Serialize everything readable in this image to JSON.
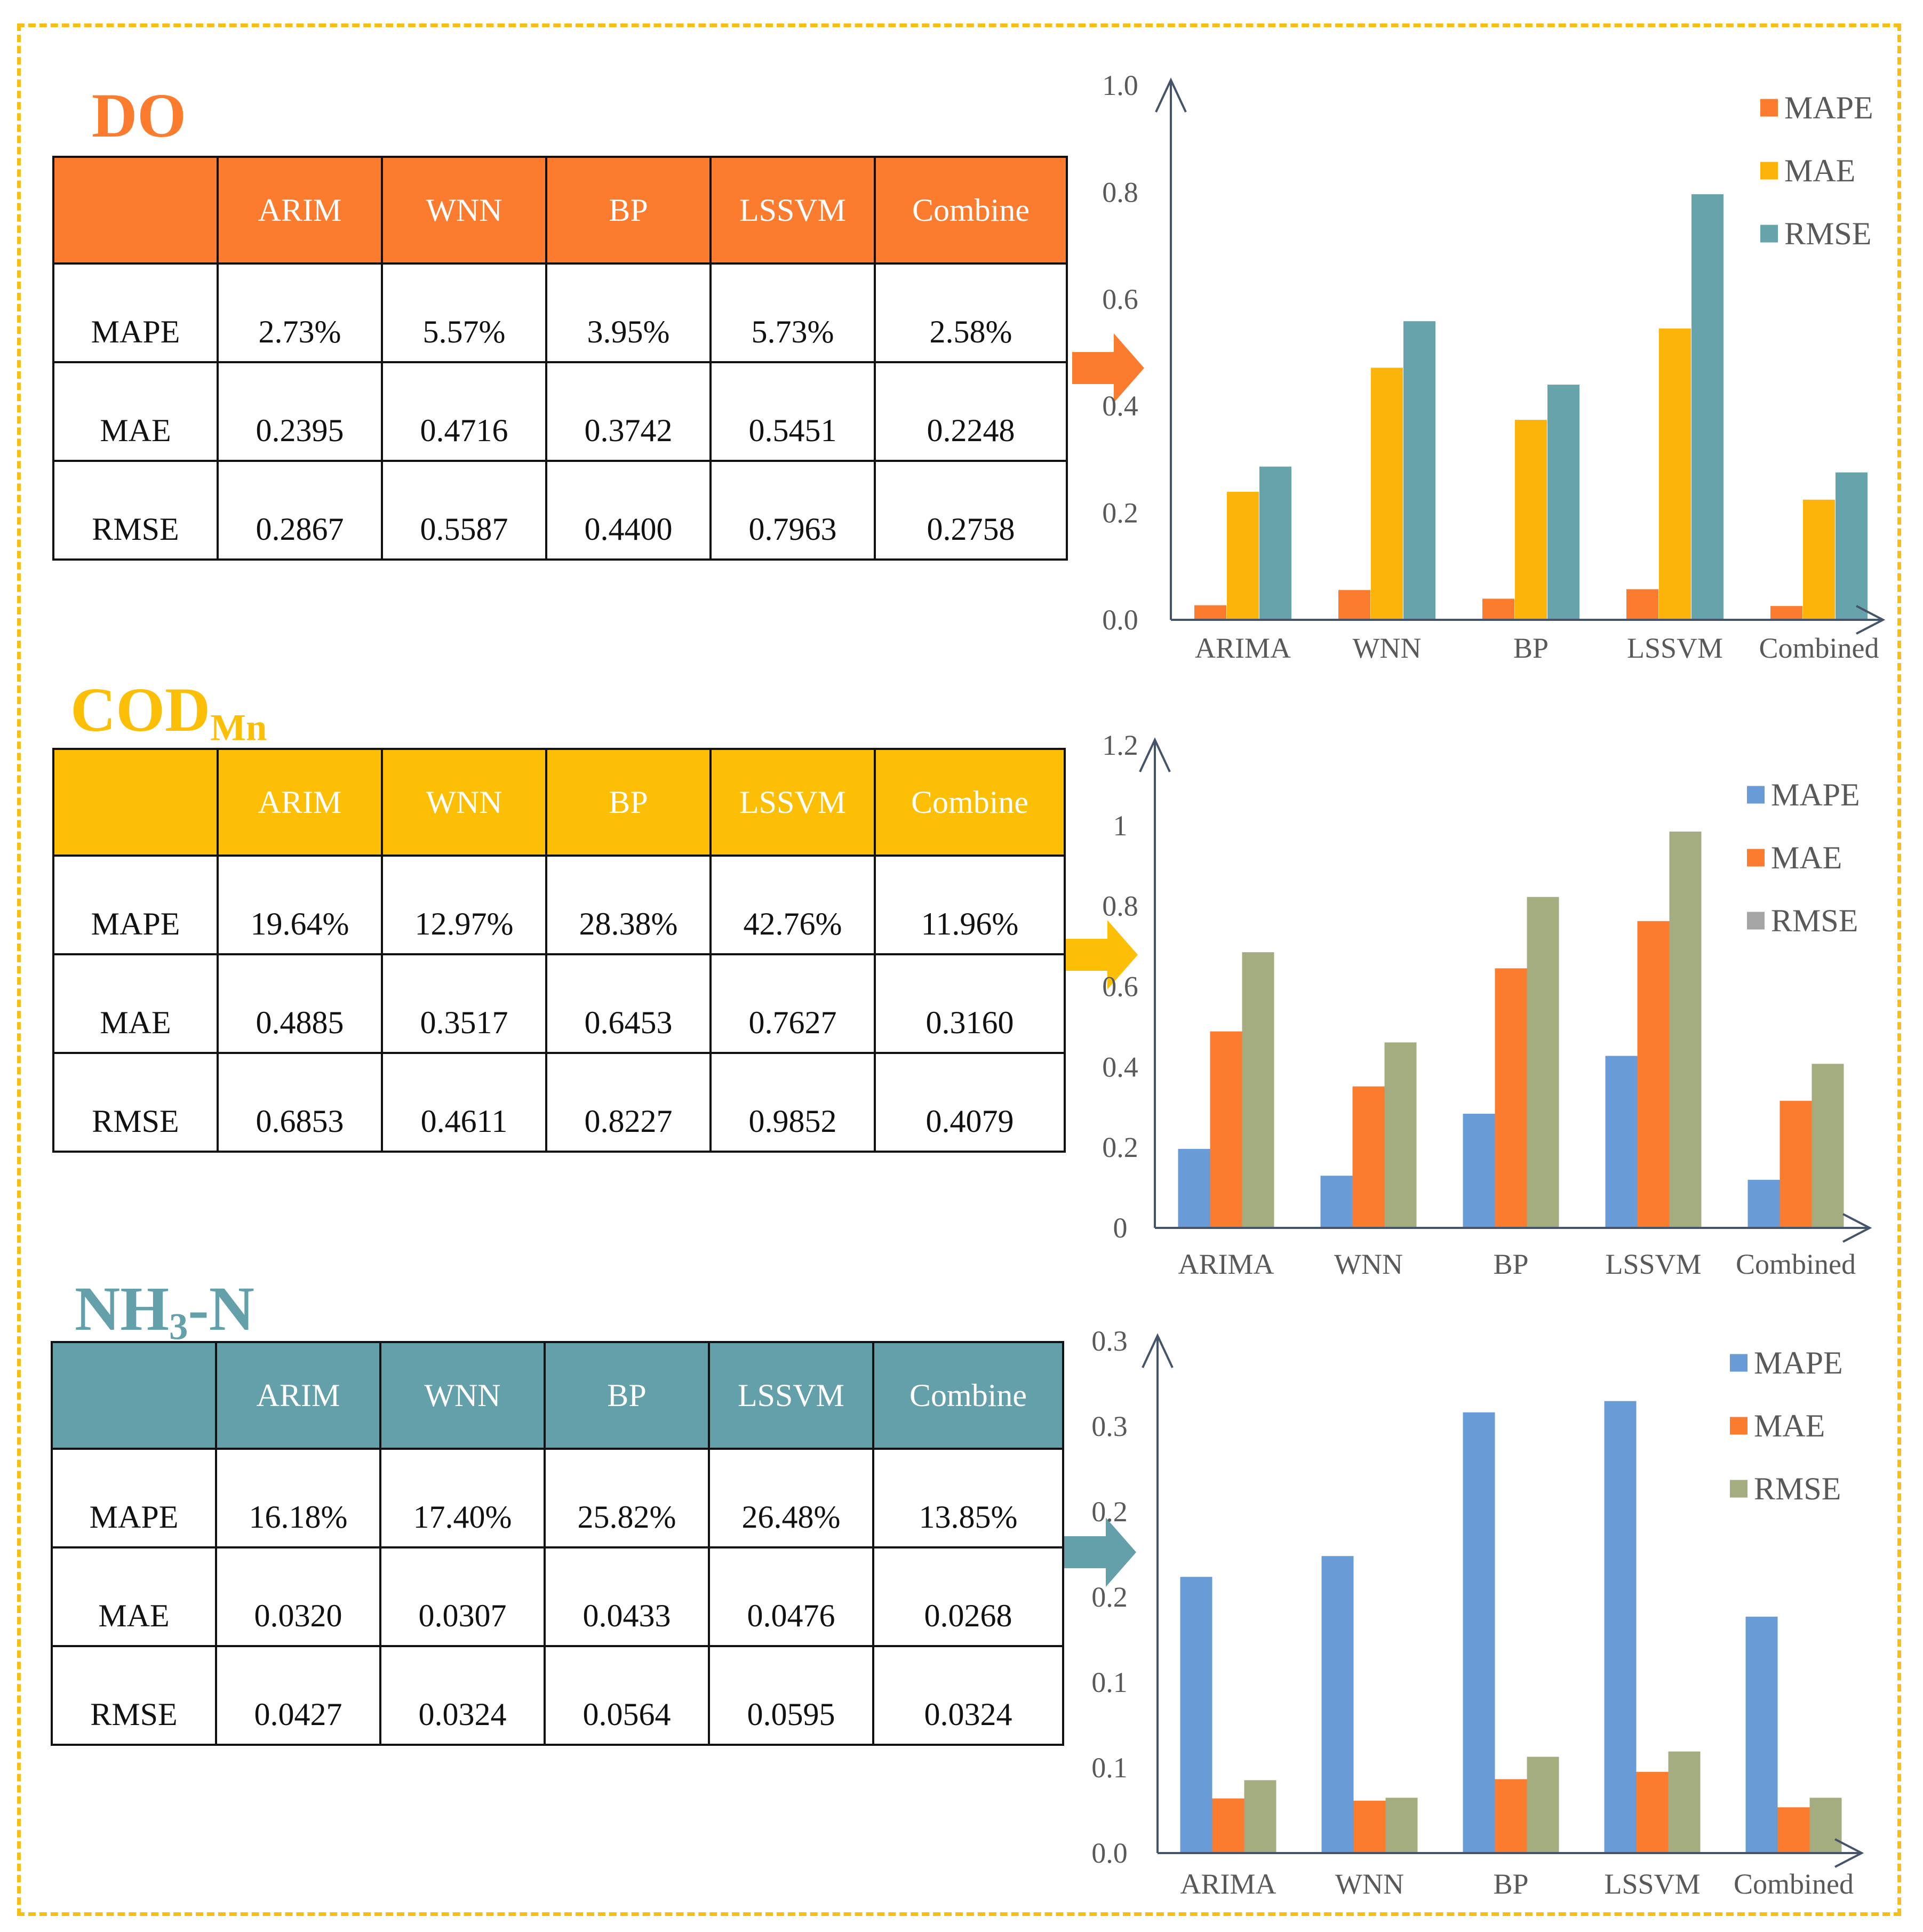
{
  "colors": {
    "frame": "#F8BE16",
    "axis": "#44546A",
    "tick": "#595959"
  },
  "sections": [
    {
      "title": "DO",
      "title_sub": "",
      "title_suffix": "",
      "color": "#FB7B2F",
      "table": {
        "columns": [
          "ARIM",
          "WNN",
          "BP",
          "LSSVM",
          "Combine"
        ],
        "rows": [
          {
            "label": "MAPE",
            "cells": [
              "2.73%",
              "5.57%",
              "3.95%",
              "5.73%",
              "2.58%"
            ]
          },
          {
            "label": "MAE",
            "cells": [
              "0.2395",
              "0.4716",
              "0.3742",
              "0.5451",
              "0.2248"
            ]
          },
          {
            "label": "RMSE",
            "cells": [
              "0.2867",
              "0.5587",
              "0.4400",
              "0.7963",
              "0.2758"
            ]
          }
        ]
      }
    },
    {
      "title": "COD",
      "title_sub": "Mn",
      "title_suffix": "",
      "color": "#FCBF06",
      "table": {
        "columns": [
          "ARIM",
          "WNN",
          "BP",
          "LSSVM",
          "Combine"
        ],
        "rows": [
          {
            "label": "MAPE",
            "cells": [
              "19.64%",
              "12.97%",
              "28.38%",
              "42.76%",
              "11.96%"
            ]
          },
          {
            "label": "MAE",
            "cells": [
              "0.4885",
              "0.3517",
              "0.6453",
              "0.7627",
              "0.3160"
            ]
          },
          {
            "label": "RMSE",
            "cells": [
              "0.6853",
              "0.4611",
              "0.8227",
              "0.9852",
              "0.4079"
            ]
          }
        ]
      }
    },
    {
      "title": "NH",
      "title_sub": "3",
      "title_suffix": "-N",
      "color": "#63A0AA",
      "table": {
        "columns": [
          "ARIM",
          "WNN",
          "BP",
          "LSSVM",
          "Combine"
        ],
        "rows": [
          {
            "label": "MAPE",
            "cells": [
              "16.18%",
              "17.40%",
              "25.82%",
              "26.48%",
              "13.85%"
            ]
          },
          {
            "label": "MAE",
            "cells": [
              "0.0320",
              "0.0307",
              "0.0433",
              "0.0476",
              "0.0268"
            ]
          },
          {
            "label": "RMSE",
            "cells": [
              "0.0427",
              "0.0324",
              "0.0564",
              "0.0595",
              "0.0324"
            ]
          }
        ]
      }
    }
  ],
  "chart_data": [
    {
      "type": "bar",
      "title": "",
      "categories": [
        "ARIMA",
        "WNN",
        "BP",
        "LSSVM",
        "Combined"
      ],
      "series": [
        {
          "name": "MAPE",
          "color": "#FB7B2F",
          "values": [
            0.0273,
            0.0557,
            0.0395,
            0.0573,
            0.0258
          ]
        },
        {
          "name": "MAE",
          "color": "#FCB40A",
          "values": [
            0.2395,
            0.4716,
            0.3742,
            0.5451,
            0.2248
          ]
        },
        {
          "name": "RMSE",
          "color": "#67A3AB",
          "values": [
            0.2867,
            0.5587,
            0.44,
            0.7963,
            0.2758
          ]
        }
      ],
      "ylim": [
        0,
        1.0
      ],
      "ytick_values": [
        0,
        0.2,
        0.4,
        0.6,
        0.8,
        1.0
      ],
      "ytick_labels": [
        "0.0",
        "0.2",
        "0.4",
        "0.6",
        "0.8",
        "1.0"
      ],
      "legend": "top-right",
      "xlabel": "",
      "ylabel": ""
    },
    {
      "type": "bar",
      "title": "",
      "categories": [
        "ARIMA",
        "WNN",
        "BP",
        "LSSVM",
        "Combined"
      ],
      "series": [
        {
          "name": "MAPE",
          "color": "#699BD6",
          "values": [
            0.1964,
            0.1297,
            0.2838,
            0.4276,
            0.1196
          ]
        },
        {
          "name": "MAE",
          "color": "#FB7B2F",
          "values": [
            0.4885,
            0.3517,
            0.6453,
            0.7627,
            0.316
          ]
        },
        {
          "name": "RMSE",
          "color": "#A3AD80",
          "values": [
            0.6853,
            0.4611,
            0.8227,
            0.9852,
            0.4079
          ]
        }
      ],
      "legend_colors": [
        "#699BD6",
        "#FB7B2F",
        "#A5A5A5"
      ],
      "ylim": [
        0,
        1.2
      ],
      "ytick_values": [
        0,
        0.2,
        0.4,
        0.6,
        0.8,
        1.0,
        1.2
      ],
      "ytick_labels": [
        "0",
        "0.2",
        "0.4",
        "0.6",
        "0.8",
        "1",
        "1.2"
      ],
      "legend": "top-right",
      "xlabel": "",
      "ylabel": ""
    },
    {
      "type": "bar",
      "title": "",
      "categories": [
        "ARIMA",
        "WNN",
        "BP",
        "LSSVM",
        "Combined"
      ],
      "series": [
        {
          "name": "MAPE",
          "color": "#699BD6",
          "values": [
            0.1618,
            0.174,
            0.2582,
            0.2648,
            0.1385
          ]
        },
        {
          "name": "MAE",
          "color": "#FB7B2F",
          "values": [
            0.032,
            0.0307,
            0.0433,
            0.0476,
            0.0268
          ]
        },
        {
          "name": "RMSE",
          "color": "#A3AD80",
          "values": [
            0.0427,
            0.0324,
            0.0564,
            0.0595,
            0.0324
          ]
        }
      ],
      "ylim": [
        0,
        0.3
      ],
      "ytick_values": [
        0,
        0.05,
        0.1,
        0.15,
        0.2,
        0.25,
        0.3
      ],
      "ytick_labels": [
        "0.0",
        "0.1",
        "0.1",
        "0.2",
        "0.2",
        "0.3",
        "0.3"
      ],
      "legend": "top-right",
      "xlabel": "",
      "ylabel": ""
    }
  ]
}
